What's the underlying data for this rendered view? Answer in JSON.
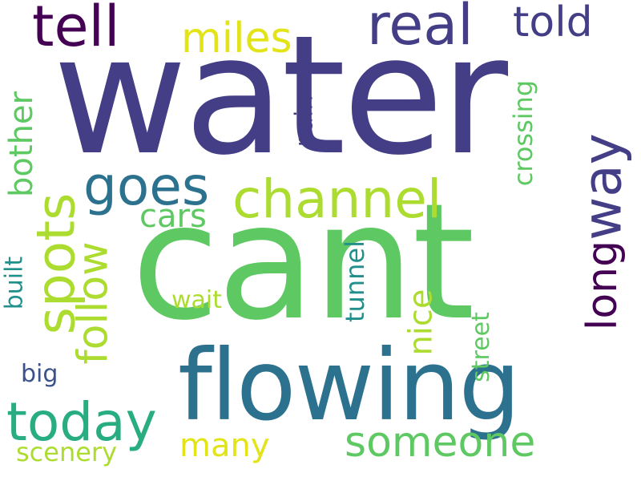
{
  "words": {
    "water": "water",
    "cant": "cant",
    "flowing": "flowing",
    "channel": "channel",
    "goes": "goes",
    "today": "today",
    "someone": "someone",
    "spots": "spots",
    "tell": "tell",
    "real": "real",
    "told": "told",
    "miles": "miles",
    "way": "way",
    "long": "long",
    "follow": "follow",
    "cars": "cars",
    "bother": "bother",
    "built": "built",
    "pain": "pain",
    "crossing": "crossing",
    "tunnel": "tunnel",
    "nice": "nice",
    "street": "street",
    "wait": "wait",
    "big": "big",
    "many": "many",
    "scenery": "scenery"
  },
  "colors": {
    "dark_purple": "#440154",
    "indigo": "#433e85",
    "blue": "#3b528b",
    "teal_blue": "#2c728e",
    "teal": "#21908d",
    "green_teal": "#27ad81",
    "green": "#5ec962",
    "yellow_green": "#addc30",
    "yellow": "#e2e418"
  }
}
